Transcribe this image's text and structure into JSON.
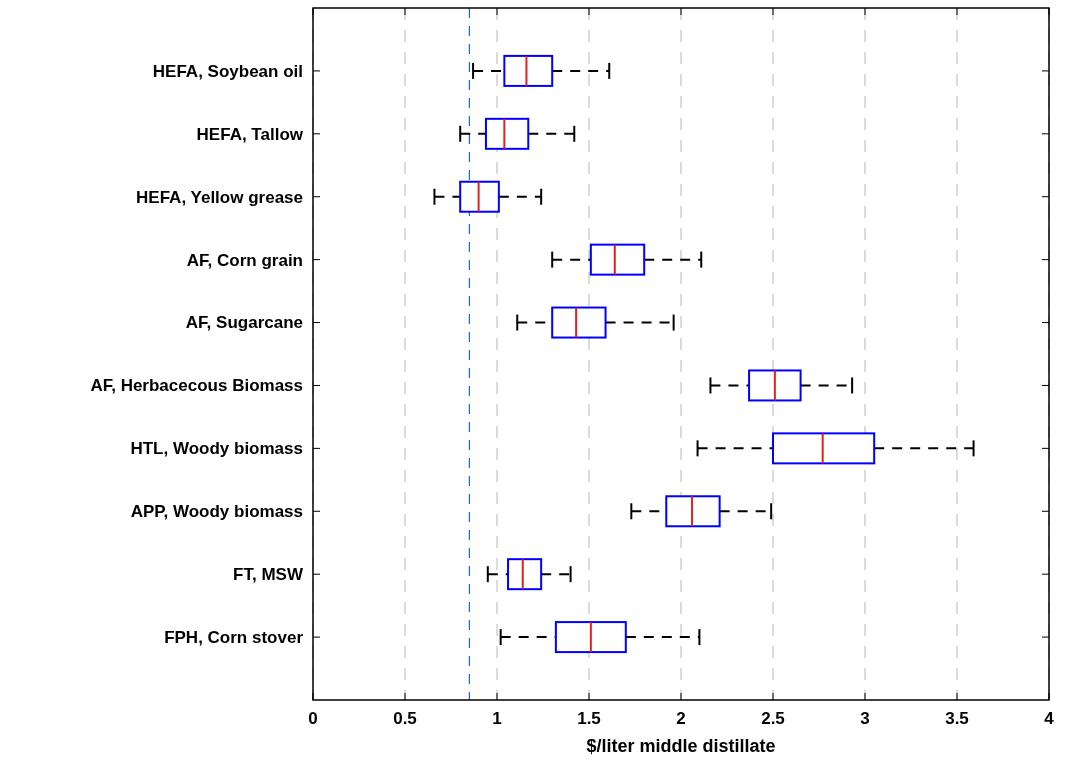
{
  "chart_data": {
    "type": "box",
    "xlabel": "$/liter middle distillate",
    "orientation": "horizontal",
    "categories": [
      "HEFA, Soybean oil",
      "HEFA, Tallow",
      "HEFA, Yellow grease",
      "AF, Corn grain",
      "AF, Sugarcane",
      "AF, Herbacecous Biomass",
      "HTL, Woody biomass",
      "APP, Woody biomass",
      "FT, MSW",
      "FPH, Corn stover"
    ],
    "boxes": [
      {
        "low": 0.87,
        "q1": 1.04,
        "median": 1.16,
        "q3": 1.3,
        "high": 1.61
      },
      {
        "low": 0.8,
        "q1": 0.94,
        "median": 1.04,
        "q3": 1.17,
        "high": 1.42
      },
      {
        "low": 0.66,
        "q1": 0.8,
        "median": 0.9,
        "q3": 1.01,
        "high": 1.24
      },
      {
        "low": 1.3,
        "q1": 1.51,
        "median": 1.64,
        "q3": 1.8,
        "high": 2.11
      },
      {
        "low": 1.11,
        "q1": 1.3,
        "median": 1.43,
        "q3": 1.59,
        "high": 1.96
      },
      {
        "low": 2.16,
        "q1": 2.37,
        "median": 2.51,
        "q3": 2.65,
        "high": 2.93
      },
      {
        "low": 2.09,
        "q1": 2.5,
        "median": 2.77,
        "q3": 3.05,
        "high": 3.59
      },
      {
        "low": 1.73,
        "q1": 1.92,
        "median": 2.06,
        "q3": 2.21,
        "high": 2.49
      },
      {
        "low": 0.95,
        "q1": 1.06,
        "median": 1.14,
        "q3": 1.24,
        "high": 1.4
      },
      {
        "low": 1.02,
        "q1": 1.32,
        "median": 1.51,
        "q3": 1.7,
        "high": 2.1
      }
    ],
    "color": "#0000ff",
    "xlim": [
      0,
      4
    ],
    "xticks": [
      0,
      0.5,
      1,
      1.5,
      2,
      2.5,
      3,
      3.5,
      4
    ],
    "grid": "x",
    "line_style": "dashed",
    "ref_lines": [
      {
        "axis": "x",
        "value": 0.85,
        "color": "#1a66e6",
        "line_style": "dashed"
      }
    ]
  }
}
